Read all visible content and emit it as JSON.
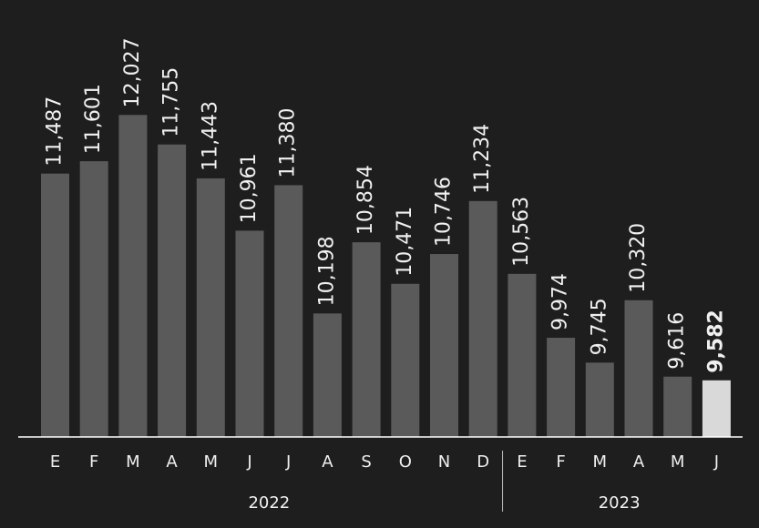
{
  "chart_data": {
    "type": "bar",
    "categories": [
      "E",
      "F",
      "M",
      "A",
      "M",
      "J",
      "J",
      "A",
      "S",
      "O",
      "N",
      "D",
      "E",
      "F",
      "M",
      "A",
      "M",
      "J"
    ],
    "values": [
      11487,
      11601,
      12027,
      11755,
      11443,
      10961,
      11380,
      10198,
      10854,
      10471,
      10746,
      11234,
      10563,
      9974,
      9745,
      10320,
      9616,
      9582
    ],
    "value_labels": [
      "11,487",
      "11,601",
      "12,027",
      "11,755",
      "11,443",
      "10,961",
      "11,380",
      "10,198",
      "10,854",
      "10,471",
      "10,746",
      "11,234",
      "10,563",
      "9,974",
      "9,745",
      "10,320",
      "9,616",
      "9,582"
    ],
    "colors": [
      "#5a5a5a",
      "#5a5a5a",
      "#5a5a5a",
      "#5a5a5a",
      "#5a5a5a",
      "#5a5a5a",
      "#5a5a5a",
      "#5a5a5a",
      "#5a5a5a",
      "#5a5a5a",
      "#5a5a5a",
      "#5a5a5a",
      "#5a5a5a",
      "#5a5a5a",
      "#5a5a5a",
      "#5a5a5a",
      "#5a5a5a",
      "#d9d9d9"
    ],
    "groups": [
      {
        "label": "2022",
        "count": 12
      },
      {
        "label": "2023",
        "count": 6
      }
    ],
    "ylim": [
      9060,
      12600
    ]
  }
}
